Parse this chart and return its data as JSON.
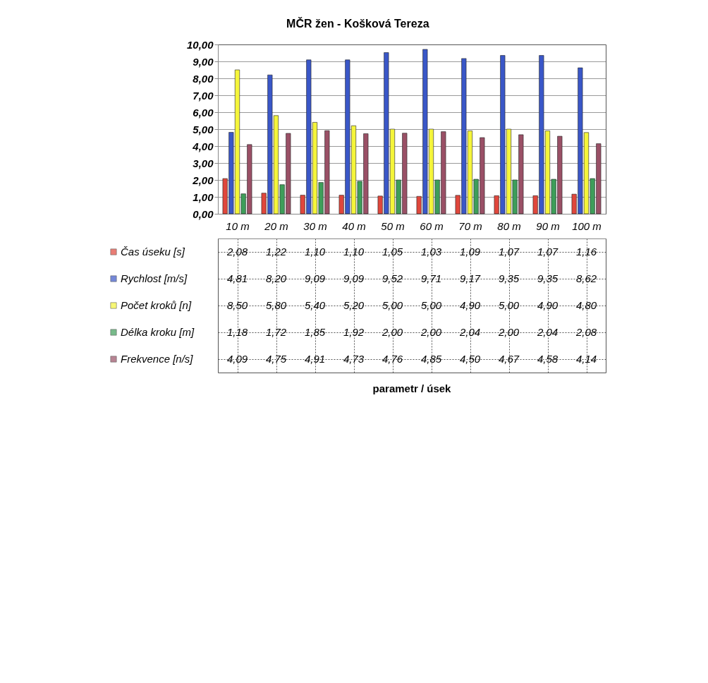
{
  "chart_data": {
    "type": "bar",
    "title": "MČR žen - Košková Tereza",
    "annotations": [
      "parametr / úsek"
    ],
    "categories": [
      "10 m",
      "20 m",
      "30 m",
      "40 m",
      "50 m",
      "60 m",
      "70 m",
      "80 m",
      "90 m",
      "100 m"
    ],
    "series": [
      {
        "name": "Čas úseku [s]",
        "color": "#e0473c",
        "values": [
          2.08,
          1.22,
          1.1,
          1.1,
          1.05,
          1.03,
          1.09,
          1.07,
          1.07,
          1.16
        ],
        "value_labels": [
          "2,08",
          "1,22",
          "1,10",
          "1,10",
          "1,05",
          "1,03",
          "1,09",
          "1,07",
          "1,07",
          "1,16"
        ]
      },
      {
        "name": "Rychlost [m/s]",
        "color": "#3a57c8",
        "values": [
          4.81,
          8.2,
          9.09,
          9.09,
          9.52,
          9.71,
          9.17,
          9.35,
          9.35,
          8.62
        ],
        "value_labels": [
          "4,81",
          "8,20",
          "9,09",
          "9,09",
          "9,52",
          "9,71",
          "9,17",
          "9,35",
          "9,35",
          "8,62"
        ]
      },
      {
        "name": "Počet kroků [n]",
        "color": "#f5f53a",
        "values": [
          8.5,
          5.8,
          5.4,
          5.2,
          5.0,
          5.0,
          4.9,
          5.0,
          4.9,
          4.8
        ],
        "value_labels": [
          "8,50",
          "5,80",
          "5,40",
          "5,20",
          "5,00",
          "5,00",
          "4,90",
          "5,00",
          "4,90",
          "4,80"
        ]
      },
      {
        "name": "Délka kroku [m]",
        "color": "#3e9e5a",
        "values": [
          1.18,
          1.72,
          1.85,
          1.92,
          2.0,
          2.0,
          2.04,
          2.0,
          2.04,
          2.08
        ],
        "value_labels": [
          "1,18",
          "1,72",
          "1,85",
          "1,92",
          "2,00",
          "2,00",
          "2,04",
          "2,00",
          "2,04",
          "2,08"
        ]
      },
      {
        "name": "Frekvence [n/s]",
        "color": "#9a5066",
        "values": [
          4.09,
          4.75,
          4.91,
          4.73,
          4.76,
          4.85,
          4.5,
          4.67,
          4.58,
          4.14
        ],
        "value_labels": [
          "4,09",
          "4,75",
          "4,91",
          "4,73",
          "4,76",
          "4,85",
          "4,50",
          "4,67",
          "4,58",
          "4,14"
        ]
      }
    ],
    "ylim": [
      0,
      10
    ],
    "yticks": [
      {
        "value": 0,
        "label": "0,00"
      },
      {
        "value": 1,
        "label": "1,00"
      },
      {
        "value": 2,
        "label": "2,00"
      },
      {
        "value": 3,
        "label": "3,00"
      },
      {
        "value": 4,
        "label": "4,00"
      },
      {
        "value": 5,
        "label": "5,00"
      },
      {
        "value": 6,
        "label": "6,00"
      },
      {
        "value": 7,
        "label": "7,00"
      },
      {
        "value": 8,
        "label": "8,00"
      },
      {
        "value": 9,
        "label": "9,00"
      },
      {
        "value": 10,
        "label": "10,00"
      }
    ],
    "grid": "y",
    "legend": "bottom left"
  }
}
